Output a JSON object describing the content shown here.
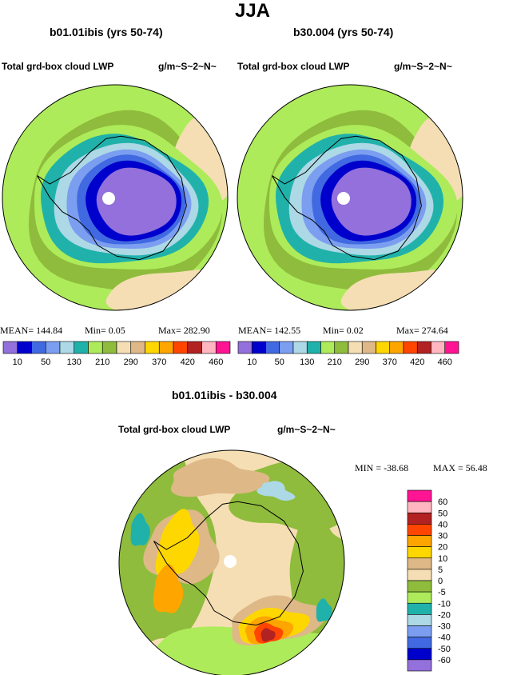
{
  "title": "JJA",
  "panels": [
    {
      "title": "b01.01ibis (yrs 50-74)",
      "variable": "Total grd-box cloud LWP",
      "units": "g/m~S~2~N~",
      "stats": {
        "mean": "MEAN= 144.84",
        "min": "Min=   0.05",
        "max": "Max= 282.90"
      }
    },
    {
      "title": "b30.004 (yrs 50-74)",
      "variable": "Total grd-box cloud LWP",
      "units": "g/m~S~2~N~",
      "stats": {
        "mean": "MEAN= 142.55",
        "min": "Min=   0.02",
        "max": "Max= 274.64"
      }
    },
    {
      "title": "b01.01ibis - b30.004",
      "variable": "Total grd-box cloud LWP",
      "units": "g/m~S~2~N~",
      "stats": {
        "min": "MIN = -38.68",
        "max": "MAX =  56.48"
      }
    }
  ],
  "colorbar_top": {
    "colors": [
      "#9370db",
      "#0000cd",
      "#4169e1",
      "#7b9ef0",
      "#add8e6",
      "#20b2aa",
      "#adeb5a",
      "#8fbc3c",
      "#f5deb3",
      "#deb887",
      "#ffd700",
      "#ffa500",
      "#ff4500",
      "#b22222",
      "#ffb6c1",
      "#ff1493"
    ],
    "labels": [
      "10",
      "50",
      "130",
      "210",
      "290",
      "370",
      "420",
      "460"
    ]
  },
  "colorbar_diff": {
    "labels": [
      "60",
      "50",
      "40",
      "30",
      "20",
      "10",
      "5",
      "0",
      "-5",
      "-10",
      "-20",
      "-30",
      "-40",
      "-50",
      "-60"
    ],
    "colors": [
      "#ff1493",
      "#ffb6c1",
      "#b22222",
      "#ff4500",
      "#ffa500",
      "#ffd700",
      "#deb887",
      "#f5deb3",
      "#8fbc3c",
      "#adeb5a",
      "#20b2aa",
      "#add8e6",
      "#7b9ef0",
      "#4169e1",
      "#0000cd",
      "#9370db"
    ]
  },
  "chart_data": [
    {
      "type": "heatmap",
      "title": "b01.01ibis (yrs 50-74)",
      "subtitle": "Total grd-box cloud LWP",
      "units": "g/m~S~2~N~",
      "projection": "south polar stereographic",
      "levels": [
        10,
        50,
        130,
        210,
        290,
        370,
        420,
        460
      ],
      "summary": {
        "mean": 144.84,
        "min": 0.05,
        "max": 282.9
      }
    },
    {
      "type": "heatmap",
      "title": "b30.004 (yrs 50-74)",
      "subtitle": "Total grd-box cloud LWP",
      "units": "g/m~S~2~N~",
      "projection": "south polar stereographic",
      "levels": [
        10,
        50,
        130,
        210,
        290,
        370,
        420,
        460
      ],
      "summary": {
        "mean": 142.55,
        "min": 0.02,
        "max": 274.64
      }
    },
    {
      "type": "heatmap",
      "title": "b01.01ibis - b30.004",
      "subtitle": "Total grd-box cloud LWP",
      "units": "g/m~S~2~N~",
      "projection": "south polar stereographic",
      "levels": [
        -60,
        -50,
        -40,
        -30,
        -20,
        -10,
        -5,
        0,
        5,
        10,
        20,
        30,
        40,
        50,
        60
      ],
      "summary": {
        "min": -38.68,
        "max": 56.48
      }
    }
  ]
}
